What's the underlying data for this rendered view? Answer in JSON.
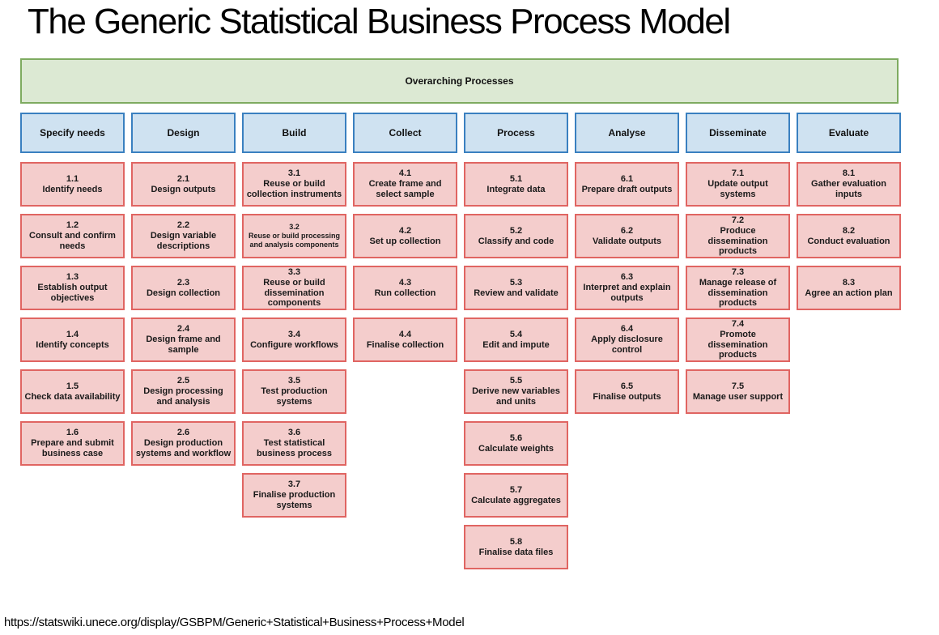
{
  "title": "The Generic Statistical Business Process Model",
  "overarching_label": "Overarching Processes",
  "footer_url": "https://statswiki.unece.org/display/GSBPM/Generic+Statistical+Business+Process+Model",
  "colors": {
    "phase_fill": "#cfe2f1",
    "phase_border": "#3a80c0",
    "process_fill": "#f4cdcc",
    "process_border": "#e06562",
    "overarching_fill": "#dce9d3",
    "overarching_border": "#7eab60"
  },
  "phases": [
    {
      "label": "Specify needs",
      "processes": [
        {
          "num": "1.1",
          "label": "Identify needs"
        },
        {
          "num": "1.2",
          "label": "Consult and confirm needs"
        },
        {
          "num": "1.3",
          "label": "Establish output objectives"
        },
        {
          "num": "1.4",
          "label": "Identify concepts"
        },
        {
          "num": "1.5",
          "label": "Check data availability"
        },
        {
          "num": "1.6",
          "label": "Prepare and submit business case"
        }
      ]
    },
    {
      "label": "Design",
      "processes": [
        {
          "num": "2.1",
          "label": "Design outputs"
        },
        {
          "num": "2.2",
          "label": "Design variable descriptions"
        },
        {
          "num": "2.3",
          "label": "Design collection"
        },
        {
          "num": "2.4",
          "label": "Design frame and sample"
        },
        {
          "num": "2.5",
          "label": "Design processing and analysis"
        },
        {
          "num": "2.6",
          "label": "Design production systems and workflow"
        }
      ]
    },
    {
      "label": "Build",
      "processes": [
        {
          "num": "3.1",
          "label": "Reuse or build collection instruments"
        },
        {
          "num": "3.2",
          "label": "Reuse or build processing and analysis components",
          "small": true
        },
        {
          "num": "3.3",
          "label": "Reuse or build dissemination components"
        },
        {
          "num": "3.4",
          "label": "Configure workflows"
        },
        {
          "num": "3.5",
          "label": "Test production systems"
        },
        {
          "num": "3.6",
          "label": "Test statistical business process"
        },
        {
          "num": "3.7",
          "label": "Finalise production systems"
        }
      ]
    },
    {
      "label": "Collect",
      "processes": [
        {
          "num": "4.1",
          "label": "Create frame and select sample"
        },
        {
          "num": "4.2",
          "label": "Set up collection"
        },
        {
          "num": "4.3",
          "label": "Run collection"
        },
        {
          "num": "4.4",
          "label": "Finalise collection"
        }
      ]
    },
    {
      "label": "Process",
      "processes": [
        {
          "num": "5.1",
          "label": "Integrate data"
        },
        {
          "num": "5.2",
          "label": "Classify and code"
        },
        {
          "num": "5.3",
          "label": "Review and validate"
        },
        {
          "num": "5.4",
          "label": "Edit and impute"
        },
        {
          "num": "5.5",
          "label": "Derive new variables and units"
        },
        {
          "num": "5.6",
          "label": "Calculate weights"
        },
        {
          "num": "5.7",
          "label": "Calculate aggregates"
        },
        {
          "num": "5.8",
          "label": "Finalise data files"
        }
      ]
    },
    {
      "label": "Analyse",
      "processes": [
        {
          "num": "6.1",
          "label": "Prepare draft outputs"
        },
        {
          "num": "6.2",
          "label": "Validate outputs"
        },
        {
          "num": "6.3",
          "label": "Interpret and explain outputs"
        },
        {
          "num": "6.4",
          "label": "Apply disclosure control"
        },
        {
          "num": "6.5",
          "label": "Finalise outputs"
        }
      ]
    },
    {
      "label": "Disseminate",
      "processes": [
        {
          "num": "7.1",
          "label": "Update output systems"
        },
        {
          "num": "7.2",
          "label": "Produce dissemination products"
        },
        {
          "num": "7.3",
          "label": "Manage release of dissemination products"
        },
        {
          "num": "7.4",
          "label": "Promote dissemination products"
        },
        {
          "num": "7.5",
          "label": "Manage user support"
        }
      ]
    },
    {
      "label": "Evaluate",
      "processes": [
        {
          "num": "8.1",
          "label": "Gather evaluation inputs"
        },
        {
          "num": "8.2",
          "label": "Conduct evaluation"
        },
        {
          "num": "8.3",
          "label": "Agree an action plan"
        }
      ]
    }
  ]
}
